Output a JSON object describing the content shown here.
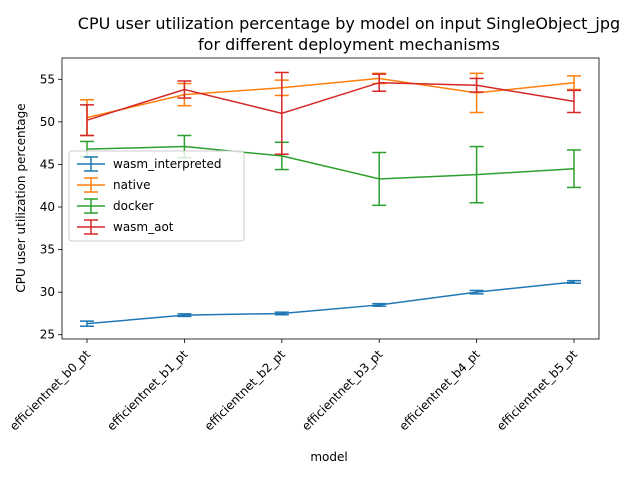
{
  "chart_data": {
    "type": "line",
    "title_line1": "CPU user utilization percentage by model on input SingleObject_jpg",
    "title_line2": "for different deployment mechanisms",
    "xlabel": "model",
    "ylabel": "CPU user utilization percentage",
    "categories": [
      "efficientnet_b0_pt",
      "efficientnet_b1_pt",
      "efficientnet_b2_pt",
      "efficientnet_b3_pt",
      "efficientnet_b4_pt",
      "efficientnet_b5_pt"
    ],
    "ylim": [
      24.5,
      57.5
    ],
    "yticks": [
      25,
      30,
      35,
      40,
      45,
      50,
      55
    ],
    "grid": false,
    "legend_position": "center-left",
    "series": [
      {
        "name": "wasm_interpreted",
        "color": "#1f77b4",
        "values": [
          26.3,
          27.3,
          27.5,
          28.5,
          30.0,
          31.2
        ],
        "errors": [
          0.3,
          0.15,
          0.15,
          0.15,
          0.2,
          0.15
        ]
      },
      {
        "name": "native",
        "color": "#ff7f0e",
        "values": [
          50.5,
          53.2,
          54.0,
          55.1,
          53.4,
          54.6
        ],
        "errors": [
          2.1,
          1.3,
          0.9,
          0.6,
          2.3,
          0.8
        ]
      },
      {
        "name": "docker",
        "color": "#2ca02c",
        "values": [
          46.8,
          47.1,
          46.0,
          43.3,
          43.8,
          44.5
        ],
        "errors": [
          0.9,
          1.3,
          1.6,
          3.1,
          3.3,
          2.2
        ]
      },
      {
        "name": "wasm_aot",
        "color": "#d62728",
        "values": [
          50.2,
          53.8,
          51.0,
          54.6,
          54.3,
          52.4
        ],
        "errors": [
          1.8,
          1.0,
          4.8,
          1.0,
          0.8,
          1.3
        ]
      }
    ]
  }
}
